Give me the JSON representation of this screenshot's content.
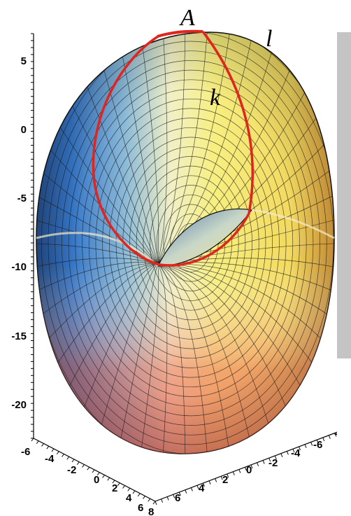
{
  "figure": {
    "z_axis_ticks": [
      "5",
      "0",
      "-5",
      "-10",
      "-15",
      "-20"
    ],
    "x_axis_ticks": [
      "-6",
      "-4",
      "-2",
      "0",
      "2",
      "4",
      "6"
    ],
    "y_axis_ticks": [
      "8",
      "6",
      "4",
      "2",
      "0",
      "-2",
      "-4",
      "-6",
      "-8"
    ],
    "labels": {
      "point": "A",
      "curve_l": "l",
      "curve_k": "k"
    },
    "colors": {
      "curve": "#e0251e",
      "mesh_line": "#1a1a1a",
      "sidebar": "#c4c4c4",
      "surface_left": "#2f6fc4",
      "surface_right": "#f4ea6a",
      "surface_bottom": "#ef7b62"
    }
  }
}
